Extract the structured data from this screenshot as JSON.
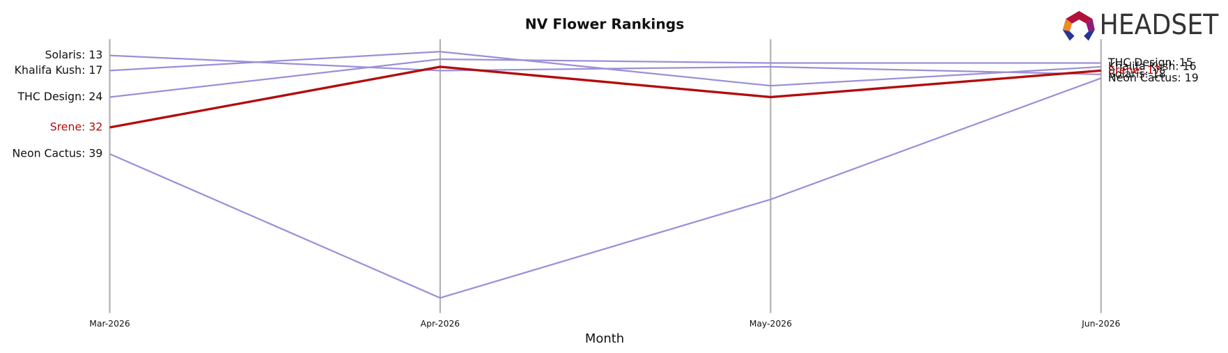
{
  "logo": "HEADSET",
  "chart_data": {
    "type": "bump",
    "title": "NV Flower Rankings",
    "x_label": "Month",
    "categories": [
      "Mar-2026",
      "Apr-2026",
      "May-2026",
      "Jun-2026"
    ],
    "ylim": [
      81,
      8.7
    ],
    "highlight": "Srene",
    "series": [
      {
        "name": "Solaris",
        "color": "#9b8fd8",
        "values": [
          13,
          17,
          16,
          18
        ],
        "start_label": "Solaris: 13",
        "end_label": "Solaris: 18"
      },
      {
        "name": "Khalifa Kush",
        "color": "#9b8fd8",
        "values": [
          17,
          12,
          21,
          16
        ],
        "start_label": "Khalifa Kush: 17",
        "end_label": "Khalifa Kush: 16"
      },
      {
        "name": "THC Design",
        "color": "#9b8fd8",
        "values": [
          24,
          14,
          15,
          15
        ],
        "start_label": "THC Design: 24",
        "end_label": "THC Design: 15"
      },
      {
        "name": "Srene",
        "color": "#b30c0c",
        "values": [
          32,
          16,
          24,
          17
        ],
        "start_label": "Srene: 32",
        "end_label": "Srene: 17"
      },
      {
        "name": "Neon Cactus",
        "color": "#9b8fd8",
        "values": [
          39,
          77,
          51,
          19
        ],
        "start_label": "Neon Cactus: 39",
        "end_label": "Neon Cactus: 19"
      }
    ]
  }
}
